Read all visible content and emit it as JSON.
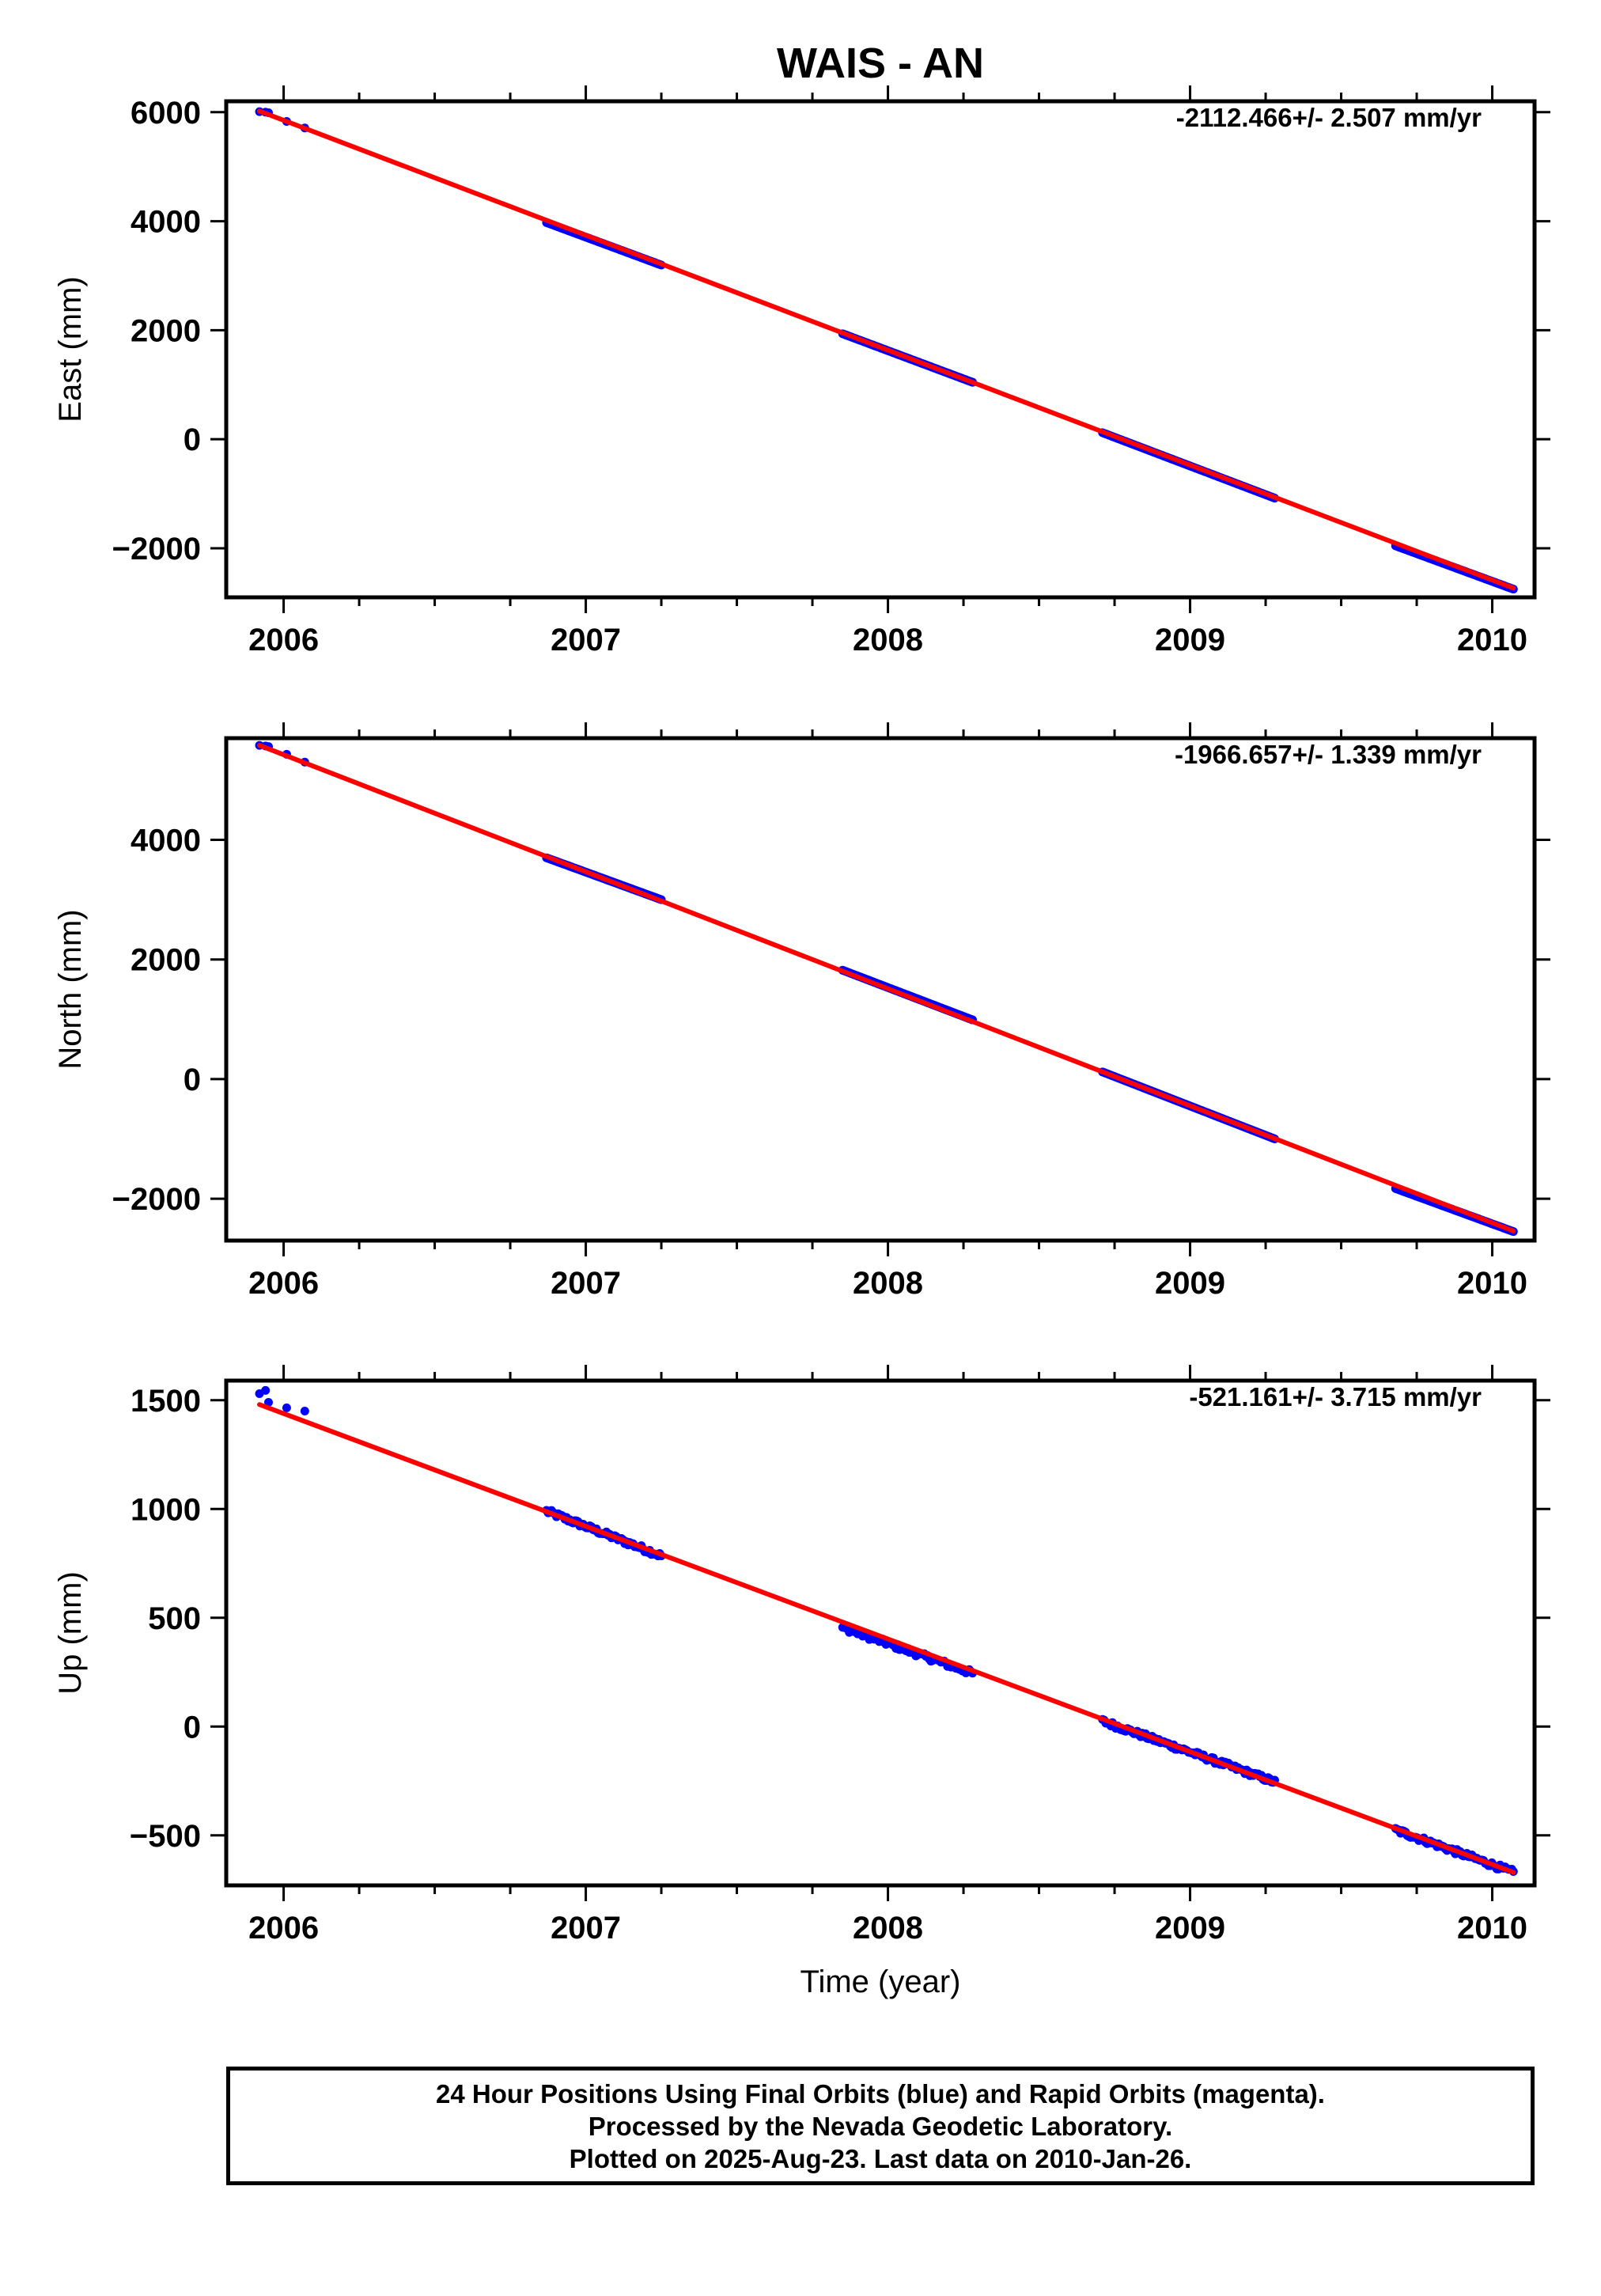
{
  "title": "WAIS - AN",
  "colors": {
    "final_orbits": "#0000ff",
    "fit_line": "#ff0000",
    "axes": "#000000"
  },
  "chart_data": [
    {
      "type": "scatter",
      "ylabel": "East (mm)",
      "xlabel": "",
      "rate_label": "-2112.466+/- 2.507 mm/yr",
      "xlim": [
        2005.81,
        2010.14
      ],
      "ylim": [
        -2900,
        6200
      ],
      "x_ticks": [
        2006,
        2007,
        2008,
        2009,
        2010
      ],
      "y_ticks": [
        -2000,
        0,
        2000,
        4000,
        6000
      ],
      "y_tick_labels": [
        "−2000",
        "0",
        "2000",
        "4000",
        "6000"
      ],
      "series": [
        {
          "role": "final",
          "points": [
            [
              2005.92,
              6010
            ],
            [
              2005.94,
              6000
            ],
            [
              2005.95,
              5990
            ],
            [
              2006.01,
              5830
            ],
            [
              2006.07,
              5710
            ]
          ]
        },
        {
          "role": "final",
          "segment": {
            "x": [
              2006.87,
              2007.25
            ],
            "y": [
              3975,
              3195
            ]
          }
        },
        {
          "role": "final",
          "segment": {
            "x": [
              2007.85,
              2008.28
            ],
            "y": [
              1935,
              1045
            ]
          }
        },
        {
          "role": "final",
          "segment": {
            "x": [
              2008.71,
              2009.28
            ],
            "y": [
              120,
              -1080
            ]
          }
        },
        {
          "role": "final",
          "segment": {
            "x": [
              2009.68,
              2010.07
            ],
            "y": [
              -1955,
              -2750
            ]
          }
        }
      ],
      "trend": {
        "x": [
          2005.92,
          2010.07
        ],
        "y": [
          6020,
          -2730
        ]
      },
      "grid": false
    },
    {
      "type": "scatter",
      "ylabel": "North (mm)",
      "xlabel": "",
      "rate_label": "-1966.657+/- 1.339 mm/yr",
      "xlim": [
        2005.81,
        2010.14
      ],
      "ylim": [
        -2700,
        5700
      ],
      "x_ticks": [
        2006,
        2007,
        2008,
        2009,
        2010
      ],
      "y_ticks": [
        -2000,
        0,
        2000,
        4000
      ],
      "y_tick_labels": [
        "−2000",
        "0",
        "2000",
        "4000"
      ],
      "series": [
        {
          "role": "final",
          "points": [
            [
              2005.92,
              5580
            ],
            [
              2005.94,
              5570
            ],
            [
              2005.95,
              5560
            ],
            [
              2006.01,
              5430
            ],
            [
              2006.07,
              5300
            ]
          ]
        },
        {
          "role": "final",
          "segment": {
            "x": [
              2006.87,
              2007.25
            ],
            "y": [
              3700,
              3000
            ]
          }
        },
        {
          "role": "final",
          "segment": {
            "x": [
              2007.85,
              2008.28
            ],
            "y": [
              1820,
              990
            ]
          }
        },
        {
          "role": "final",
          "segment": {
            "x": [
              2008.71,
              2009.28
            ],
            "y": [
              120,
              -1000
            ]
          }
        },
        {
          "role": "final",
          "segment": {
            "x": [
              2009.68,
              2010.07
            ],
            "y": [
              -1830,
              -2550
            ]
          }
        }
      ],
      "trend": {
        "x": [
          2005.92,
          2010.07
        ],
        "y": [
          5580,
          -2540
        ]
      },
      "grid": false
    },
    {
      "type": "scatter",
      "ylabel": "Up (mm)",
      "xlabel": "Time (year)",
      "rate_label": "-521.161+/- 3.715 mm/yr",
      "xlim": [
        2005.81,
        2010.14
      ],
      "ylim": [
        -730,
        1590
      ],
      "x_ticks": [
        2006,
        2007,
        2008,
        2009,
        2010
      ],
      "y_ticks": [
        -500,
        0,
        500,
        1000,
        1500
      ],
      "y_tick_labels": [
        "−500",
        "0",
        "500",
        "1000",
        "1500"
      ],
      "series": [
        {
          "role": "final",
          "points": [
            [
              2005.92,
              1530
            ],
            [
              2005.94,
              1545
            ],
            [
              2005.95,
              1490
            ],
            [
              2006.01,
              1465
            ],
            [
              2006.07,
              1450
            ]
          ]
        },
        {
          "role": "final",
          "segment": {
            "x": [
              2006.87,
              2007.25
            ],
            "y": [
              990,
              785
            ]
          },
          "noise": 12
        },
        {
          "role": "final",
          "segment": {
            "x": [
              2007.85,
              2008.28
            ],
            "y": [
              455,
              245
            ]
          },
          "noise": 12
        },
        {
          "role": "final",
          "segment": {
            "x": [
              2008.71,
              2009.28
            ],
            "y": [
              25,
              -255
            ]
          },
          "noise": 12
        },
        {
          "role": "final",
          "segment": {
            "x": [
              2009.68,
              2010.07
            ],
            "y": [
              -475,
              -670
            ]
          },
          "noise": 12
        }
      ],
      "trend": {
        "x": [
          2005.92,
          2010.07
        ],
        "y": [
          1480,
          -670
        ]
      },
      "grid": false
    }
  ],
  "footer": {
    "line1": "24 Hour Positions Using Final Orbits (blue) and Rapid Orbits (magenta).",
    "line2": "Processed by the Nevada Geodetic Laboratory.",
    "line3": "Plotted on 2025-Aug-23. Last data on 2010-Jan-26."
  }
}
